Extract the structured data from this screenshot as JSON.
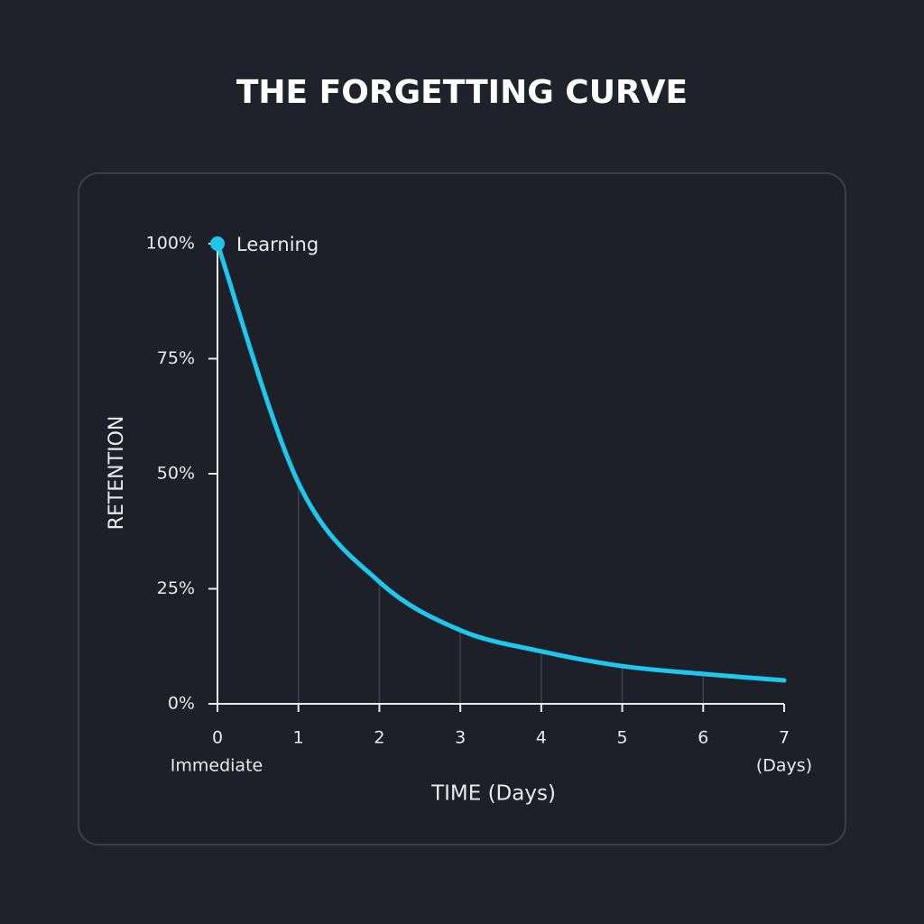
{
  "chart_data": {
    "type": "line",
    "title": "THE FORGETTING CURVE",
    "x_label": "TIME (Days)",
    "y_label": "RETENTION",
    "x": [
      0,
      1,
      2,
      3,
      4,
      5,
      6,
      7
    ],
    "series": [
      {
        "name": "Learning",
        "color": "#1ec8ec",
        "values": [
          100,
          48,
          26.5,
          16,
          11.4,
          8.2,
          6.5,
          5.1
        ]
      }
    ],
    "xlim": [
      0,
      7
    ],
    "xticks": [
      0,
      1,
      2,
      3,
      4,
      5,
      6,
      7
    ],
    "ylim": [
      0,
      100
    ],
    "yticks": [
      {
        "value": 0,
        "label": "0%"
      },
      {
        "value": 25,
        "label": "25%"
      },
      {
        "value": 50,
        "label": "50%"
      },
      {
        "value": 75,
        "label": "75%"
      },
      {
        "value": 100,
        "label": "100%"
      }
    ],
    "x_start_note": "Immediate",
    "x_end_note": "(Days)",
    "grid": true
  }
}
